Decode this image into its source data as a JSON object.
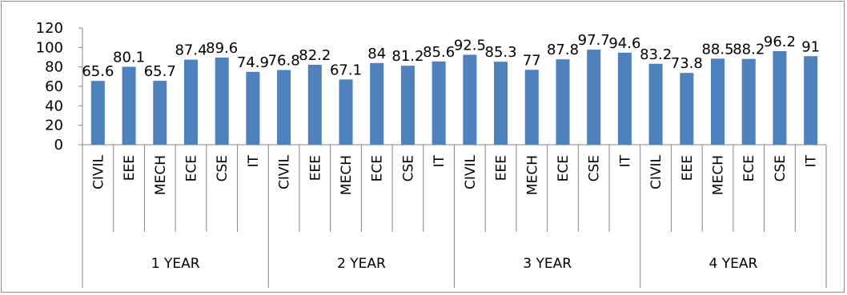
{
  "chart_data": {
    "type": "bar",
    "groups": [
      {
        "label": "1 YEAR",
        "categories": [
          "CIVIL",
          "EEE",
          "MECH",
          "ECE",
          "CSE",
          "IT"
        ],
        "values": [
          65.6,
          80.1,
          65.7,
          87.4,
          89.6,
          74.9
        ]
      },
      {
        "label": "2 YEAR",
        "categories": [
          "CIVIL",
          "EEE",
          "MECH",
          "ECE",
          "CSE",
          "IT"
        ],
        "values": [
          76.8,
          82.2,
          67.1,
          84,
          81.2,
          85.6
        ]
      },
      {
        "label": "3 YEAR",
        "categories": [
          "CIVIL",
          "EEE",
          "MECH",
          "ECE",
          "CSE",
          "IT"
        ],
        "values": [
          92.5,
          85.3,
          77,
          87.8,
          97.7,
          94.6
        ]
      },
      {
        "label": "4 YEAR",
        "categories": [
          "CIVIL",
          "EEE",
          "MECH",
          "ECE",
          "CSE",
          "IT"
        ],
        "values": [
          83.2,
          73.8,
          88.5,
          88.2,
          96.2,
          91
        ]
      }
    ],
    "ylim": [
      0,
      120
    ],
    "yticks": [
      0,
      20,
      40,
      60,
      80,
      100,
      120
    ],
    "grid": false,
    "legend": "none",
    "bar_color": "#4f81bd",
    "axis_color": "#868686"
  }
}
